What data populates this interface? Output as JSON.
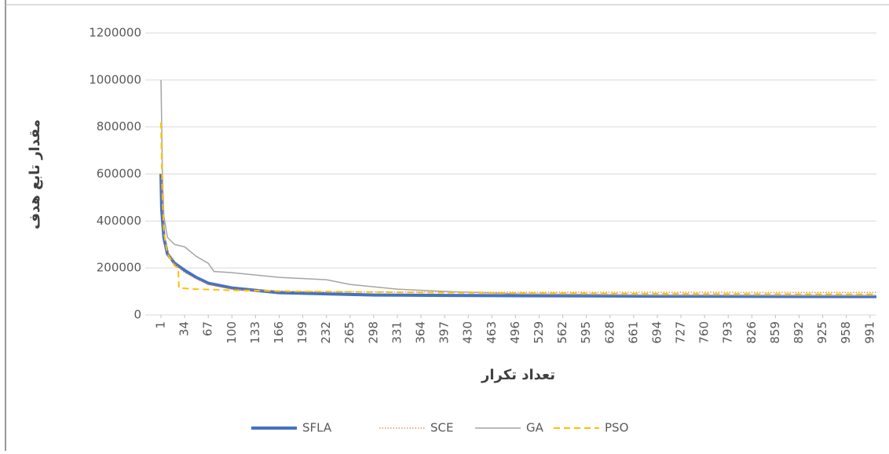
{
  "chart_data": {
    "type": "line",
    "ylabel": "مقدار تابع هدف",
    "xlabel": "تعداد تکرار",
    "xlim": [
      1,
      1000
    ],
    "xticks": [
      1,
      34,
      67,
      100,
      133,
      166,
      199,
      232,
      265,
      298,
      331,
      364,
      397,
      430,
      463,
      496,
      529,
      562,
      595,
      628,
      661,
      694,
      727,
      760,
      793,
      826,
      859,
      892,
      925,
      958,
      991
    ],
    "ylim": [
      0,
      1200000
    ],
    "yticks": [
      0,
      200000,
      400000,
      600000,
      800000,
      1000000,
      1200000
    ],
    "grid": true,
    "legend": "bottom",
    "series": [
      {
        "name": "SFLA",
        "color": "#4472c4",
        "dash": "solid",
        "width": 4,
        "x": [
          1,
          2,
          5,
          10,
          20,
          34,
          50,
          67,
          100,
          133,
          166,
          232,
          300,
          400,
          500,
          700,
          1000
        ],
        "values": [
          600000,
          450000,
          330000,
          260000,
          220000,
          190000,
          160000,
          135000,
          115000,
          105000,
          95000,
          90000,
          85000,
          83000,
          82000,
          80000,
          78000
        ]
      },
      {
        "name": "SCE",
        "color": "#ed7d31",
        "dash": "dotted",
        "width": 1.2,
        "x": [
          1,
          5,
          10,
          20,
          34,
          67,
          100,
          200,
          300,
          500,
          1000
        ],
        "values": [
          580000,
          350000,
          270000,
          220000,
          180000,
          130000,
          110000,
          100000,
          98000,
          97000,
          96000
        ]
      },
      {
        "name": "GA",
        "color": "#a5a5a5",
        "dash": "solid",
        "width": 1.5,
        "x": [
          1,
          3,
          5,
          10,
          20,
          34,
          50,
          67,
          75,
          100,
          133,
          166,
          232,
          265,
          331,
          400,
          500,
          700,
          1000
        ],
        "values": [
          1000000,
          600000,
          420000,
          330000,
          300000,
          290000,
          250000,
          220000,
          185000,
          180000,
          170000,
          160000,
          150000,
          130000,
          110000,
          100000,
          90000,
          85000,
          83000
        ]
      },
      {
        "name": "PSO",
        "color": "#ffc000",
        "dash": "dashed",
        "width": 2,
        "x": [
          1,
          3,
          5,
          10,
          20,
          25,
          26,
          50,
          100,
          200,
          400,
          700,
          1000
        ],
        "values": [
          820000,
          500000,
          350000,
          260000,
          210000,
          200000,
          115000,
          110000,
          105000,
          100000,
          95000,
          90000,
          88000
        ]
      }
    ]
  }
}
